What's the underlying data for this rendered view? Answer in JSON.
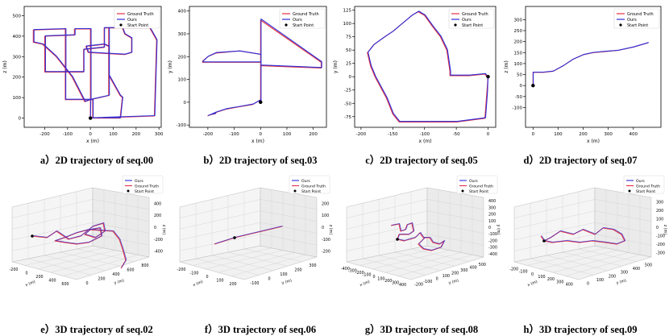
{
  "colors": {
    "gt": "#e8303f",
    "ours": "#2d2dd8",
    "start": "#000000",
    "axis": "#000000",
    "grid": "#cfcfcf"
  },
  "chart_data": [
    {
      "type": "line",
      "caption": "a）2D trajectory of seq.00",
      "xlabel": "x (m)",
      "ylabel": "z (m)",
      "xlim": [
        -290,
        310
      ],
      "ylim": [
        -45,
        545
      ],
      "xticks": [
        -200,
        -100,
        0,
        100,
        200,
        300
      ],
      "yticks": [
        0,
        100,
        200,
        300,
        400,
        500
      ],
      "legend": [
        "Ground Truth",
        "Ours",
        "Start Point"
      ],
      "legend_position": "top-right",
      "start": [
        0,
        0
      ],
      "series": [
        {
          "name": "Ground Truth",
          "x": [
            0,
            0,
            -25,
            -80,
            -150,
            -210,
            -250,
            -250,
            -110,
            -110,
            -200,
            -200,
            -70,
            -70,
            0,
            0,
            80,
            80,
            200,
            260,
            290,
            280,
            10,
            10,
            -110,
            -110,
            -30,
            -30,
            60,
            60,
            140,
            150,
            180,
            180,
            150,
            -10,
            -20,
            60,
            80,
            80,
            130,
            140,
            130,
            20,
            0
          ],
          "y": [
            0,
            90,
            80,
            200,
            300,
            360,
            370,
            430,
            435,
            225,
            225,
            400,
            405,
            435,
            435,
            90,
            110,
            440,
            440,
            440,
            380,
            10,
            0,
            90,
            90,
            225,
            225,
            335,
            345,
            440,
            440,
            410,
            390,
            320,
            310,
            320,
            350,
            360,
            350,
            210,
            110,
            100,
            0,
            0,
            0
          ]
        },
        {
          "name": "Ours",
          "x": [
            0,
            2,
            -22,
            -77,
            -148,
            -207,
            -247,
            -247,
            -107,
            -107,
            -197,
            -197,
            -67,
            -67,
            3,
            3,
            83,
            83,
            202,
            262,
            292,
            282,
            12,
            12,
            -108,
            -108,
            -28,
            -28,
            62,
            62,
            142,
            152,
            182,
            182,
            152,
            -8,
            -18,
            62,
            82,
            82,
            132,
            142,
            132,
            22,
            2
          ],
          "y": [
            2,
            92,
            82,
            202,
            302,
            362,
            372,
            432,
            437,
            227,
            227,
            402,
            407,
            437,
            437,
            92,
            112,
            442,
            442,
            442,
            382,
            12,
            2,
            92,
            92,
            227,
            227,
            337,
            347,
            442,
            442,
            412,
            392,
            322,
            312,
            322,
            352,
            362,
            352,
            212,
            112,
            102,
            2,
            2,
            2
          ]
        }
      ]
    },
    {
      "type": "line",
      "caption": "b）2D trajectory of seq.03",
      "xlabel": "x (m)",
      "ylabel": "y (m)",
      "xlim": [
        -270,
        250
      ],
      "ylim": [
        -110,
        420
      ],
      "xticks": [
        -200,
        -100,
        0,
        100,
        200
      ],
      "yticks": [
        -100,
        0,
        100,
        200,
        300,
        400
      ],
      "legend": [
        "Ground Truth",
        "Ours",
        "Start Point"
      ],
      "legend_position": "top-right",
      "start": [
        0,
        0
      ],
      "series": [
        {
          "name": "Ground Truth",
          "x": [
            0,
            0,
            -80,
            -170,
            -200,
            -220,
            -220,
            0,
            0,
            230,
            230,
            0,
            0,
            -30,
            -80,
            -130,
            -170,
            -190,
            -200,
            -190,
            -170
          ],
          "y": [
            0,
            210,
            225,
            215,
            200,
            180,
            175,
            175,
            360,
            175,
            150,
            160,
            10,
            -10,
            -20,
            -30,
            -45,
            -55,
            -60,
            -55,
            -50
          ]
        },
        {
          "name": "Ours",
          "x": [
            2,
            2,
            -78,
            -168,
            -198,
            -218,
            -218,
            2,
            2,
            232,
            232,
            2,
            2,
            -28,
            -78,
            -128,
            -168,
            -188,
            -198,
            -188,
            -168
          ],
          "y": [
            2,
            210,
            225,
            218,
            202,
            180,
            177,
            177,
            365,
            178,
            152,
            163,
            12,
            -8,
            -18,
            -28,
            -43,
            -53,
            -58,
            -53,
            -48
          ]
        }
      ]
    },
    {
      "type": "line",
      "caption": "c）2D trajectory of seq.05",
      "xlabel": "x (m)",
      "ylabel": "y (m)",
      "xlim": [
        -210,
        12
      ],
      "ylim": [
        -95,
        132
      ],
      "xticks": [
        -200,
        -150,
        -100,
        -50,
        0
      ],
      "yticks": [
        -75,
        -50,
        -25,
        0,
        25,
        50,
        75,
        100,
        125
      ],
      "legend": [
        "Ground Truth",
        "Ours",
        "Start Point"
      ],
      "legend_position": "top-right",
      "start": [
        0,
        0
      ],
      "series": [
        {
          "name": "Ground Truth",
          "x": [
            0,
            -2,
            -5,
            -50,
            -140,
            -150,
            -160,
            -178,
            -185,
            -190,
            -180,
            -165,
            -150,
            -135,
            -120,
            -110,
            -100,
            -88,
            -75,
            -65,
            -60,
            -60,
            -30,
            -5,
            -2
          ],
          "y": [
            0,
            -30,
            -78,
            -85,
            -85,
            -70,
            -40,
            0,
            20,
            45,
            60,
            73,
            85,
            100,
            115,
            122,
            115,
            95,
            75,
            50,
            10,
            2,
            2,
            5,
            0
          ]
        },
        {
          "name": "Ours",
          "x": [
            0,
            -1,
            -4,
            -49,
            -139,
            -149,
            -159,
            -177,
            -184,
            -189,
            -179,
            -164,
            -149,
            -134,
            -119,
            -109,
            -99,
            -87,
            -74,
            -64,
            -59,
            -59,
            -29,
            -4,
            -1
          ],
          "y": [
            1,
            -29,
            -77,
            -84,
            -84,
            -69,
            -39,
            1,
            21,
            46,
            61,
            74,
            86,
            101,
            116,
            123,
            116,
            96,
            76,
            51,
            11,
            3,
            3,
            6,
            1
          ]
        }
      ]
    },
    {
      "type": "line",
      "caption": "d）2D trajectory of seq.07",
      "xlabel": "x (m)",
      "ylabel": "z (m)",
      "xlim": [
        -30,
        510
      ],
      "ylim": [
        -190,
        360
      ],
      "xticks": [
        0,
        100,
        200,
        300,
        400
      ],
      "yticks": [
        -100,
        -50,
        0,
        50,
        100,
        150,
        200,
        250,
        300
      ],
      "legend": [
        "Ground Truth",
        "Ours",
        "Start Point"
      ],
      "legend_position": "top-right",
      "start": [
        0,
        0
      ],
      "series": [
        {
          "name": "Ground Truth",
          "x": [
            0,
            0,
            40,
            80,
            120,
            160,
            200,
            240,
            290,
            340,
            400,
            460
          ],
          "y": [
            0,
            60,
            60,
            65,
            90,
            120,
            140,
            150,
            155,
            160,
            175,
            195
          ]
        },
        {
          "name": "Ours",
          "x": [
            1,
            1,
            41,
            81,
            121,
            161,
            201,
            241,
            291,
            341,
            401,
            461
          ],
          "y": [
            1,
            61,
            61,
            66,
            91,
            121,
            141,
            151,
            156,
            161,
            176,
            196
          ]
        }
      ]
    },
    {
      "type": "line",
      "caption": "e）3D trajectory of seq.02",
      "legend": [
        "Ours",
        "Ground Truth",
        "Start Point"
      ],
      "legend_position": "top-right",
      "axis_x": {
        "label": "x (m)",
        "ticks": [
          -200,
          0,
          200,
          400,
          600
        ]
      },
      "axis_y": {
        "label": "y (m)",
        "ticks": [
          0,
          200,
          400,
          600,
          800
        ]
      },
      "axis_z": {
        "label": "z (m)",
        "ticks": [
          -400,
          -200,
          0,
          200,
          400
        ]
      }
    },
    {
      "type": "line",
      "caption": "f）3D trajectory of seq.06",
      "legend": [
        "Ours",
        "Ground Truth",
        "Start Point"
      ],
      "legend_position": "top-right",
      "axis_x": {
        "label": "x (m)",
        "ticks": [
          -200,
          -100,
          0,
          100,
          200
        ]
      },
      "axis_y": {
        "label": "y (m)",
        "ticks": [
          -100,
          0,
          100,
          200,
          300
        ]
      },
      "axis_z": {
        "label": "z (m)",
        "ticks": [
          -200,
          -100,
          0,
          100,
          200
        ]
      }
    },
    {
      "type": "line",
      "caption": "g）3D trajectory of seq.08",
      "legend": [
        "Ours",
        "Ground Truth",
        "Start Point"
      ],
      "legend_position": "top-right",
      "axis_x": {
        "label": "x (m)",
        "ticks": [
          -400,
          -300,
          -200,
          -100,
          0,
          100,
          200,
          300,
          400
        ]
      },
      "axis_y": {
        "label": "y (m)",
        "ticks": [
          -200,
          -100,
          0,
          100,
          200,
          300,
          400,
          500
        ]
      },
      "axis_z": {
        "label": "y (m)",
        "ticks": [
          -400,
          -300,
          -200,
          -100,
          0,
          100,
          200,
          300,
          400
        ]
      }
    },
    {
      "type": "line",
      "caption": "h）3D trajectory of seq.09",
      "legend": [
        "Ours",
        "Ground Truth",
        "Start Point"
      ],
      "legend_position": "top-right",
      "axis_x": {
        "label": "x (m)",
        "ticks": [
          -200,
          -100,
          0,
          100,
          200,
          300,
          400
        ]
      },
      "axis_y": {
        "label": "y (m)",
        "ticks": [
          0,
          100,
          200,
          300,
          400,
          500
        ]
      },
      "axis_z": {
        "label": "z (m)",
        "ticks": [
          -300,
          -200,
          -100,
          0,
          100,
          200,
          300
        ]
      }
    }
  ]
}
